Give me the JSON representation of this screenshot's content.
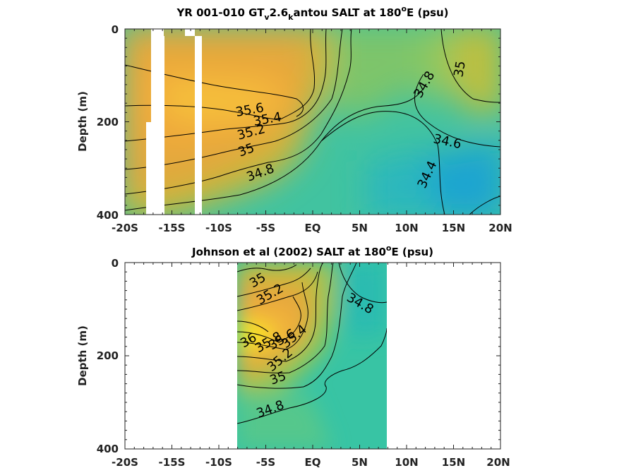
{
  "chart_data": [
    {
      "type": "heatmap",
      "title_parts": [
        "YR 001-010 GT",
        "v",
        "2.6",
        "k",
        "antou SALT at 180",
        "o",
        "E (psu)"
      ],
      "ylabel": "Depth (m)",
      "x_ticks": [
        "-20S",
        "-15S",
        "-10S",
        "-5S",
        "EQ",
        "5N",
        "10N",
        "15N",
        "20N"
      ],
      "y_ticks": [
        "0",
        "200",
        "400"
      ],
      "x_range": [
        -20,
        20
      ],
      "y_range": [
        0,
        400
      ],
      "contour_labels": [
        "35.6",
        "35.4",
        "35.2",
        "35",
        "34.8",
        "34.8",
        "35",
        "34.6",
        "34.4"
      ],
      "variable": "salinity (psu)",
      "value_range": [
        34.3,
        35.8
      ]
    },
    {
      "type": "heatmap",
      "title_parts": [
        "Johnson et al (2002) SALT at 180",
        "o",
        "E (psu)"
      ],
      "ylabel": "Depth (m)",
      "x_ticks": [
        "-20S",
        "-15S",
        "-10S",
        "-5S",
        "EQ",
        "5N",
        "10N",
        "15N",
        "20N"
      ],
      "y_ticks": [
        "0",
        "200",
        "400"
      ],
      "x_range": [
        -20,
        20
      ],
      "y_range": [
        0,
        400
      ],
      "data_x_range": [
        -8,
        8
      ],
      "contour_labels": [
        "35",
        "35.2",
        "34.8",
        "36",
        "35.8",
        "35.6",
        "35.4",
        "35.2",
        "35",
        "34.8"
      ],
      "variable": "salinity (psu)",
      "value_range": [
        34.6,
        36.0
      ]
    }
  ]
}
